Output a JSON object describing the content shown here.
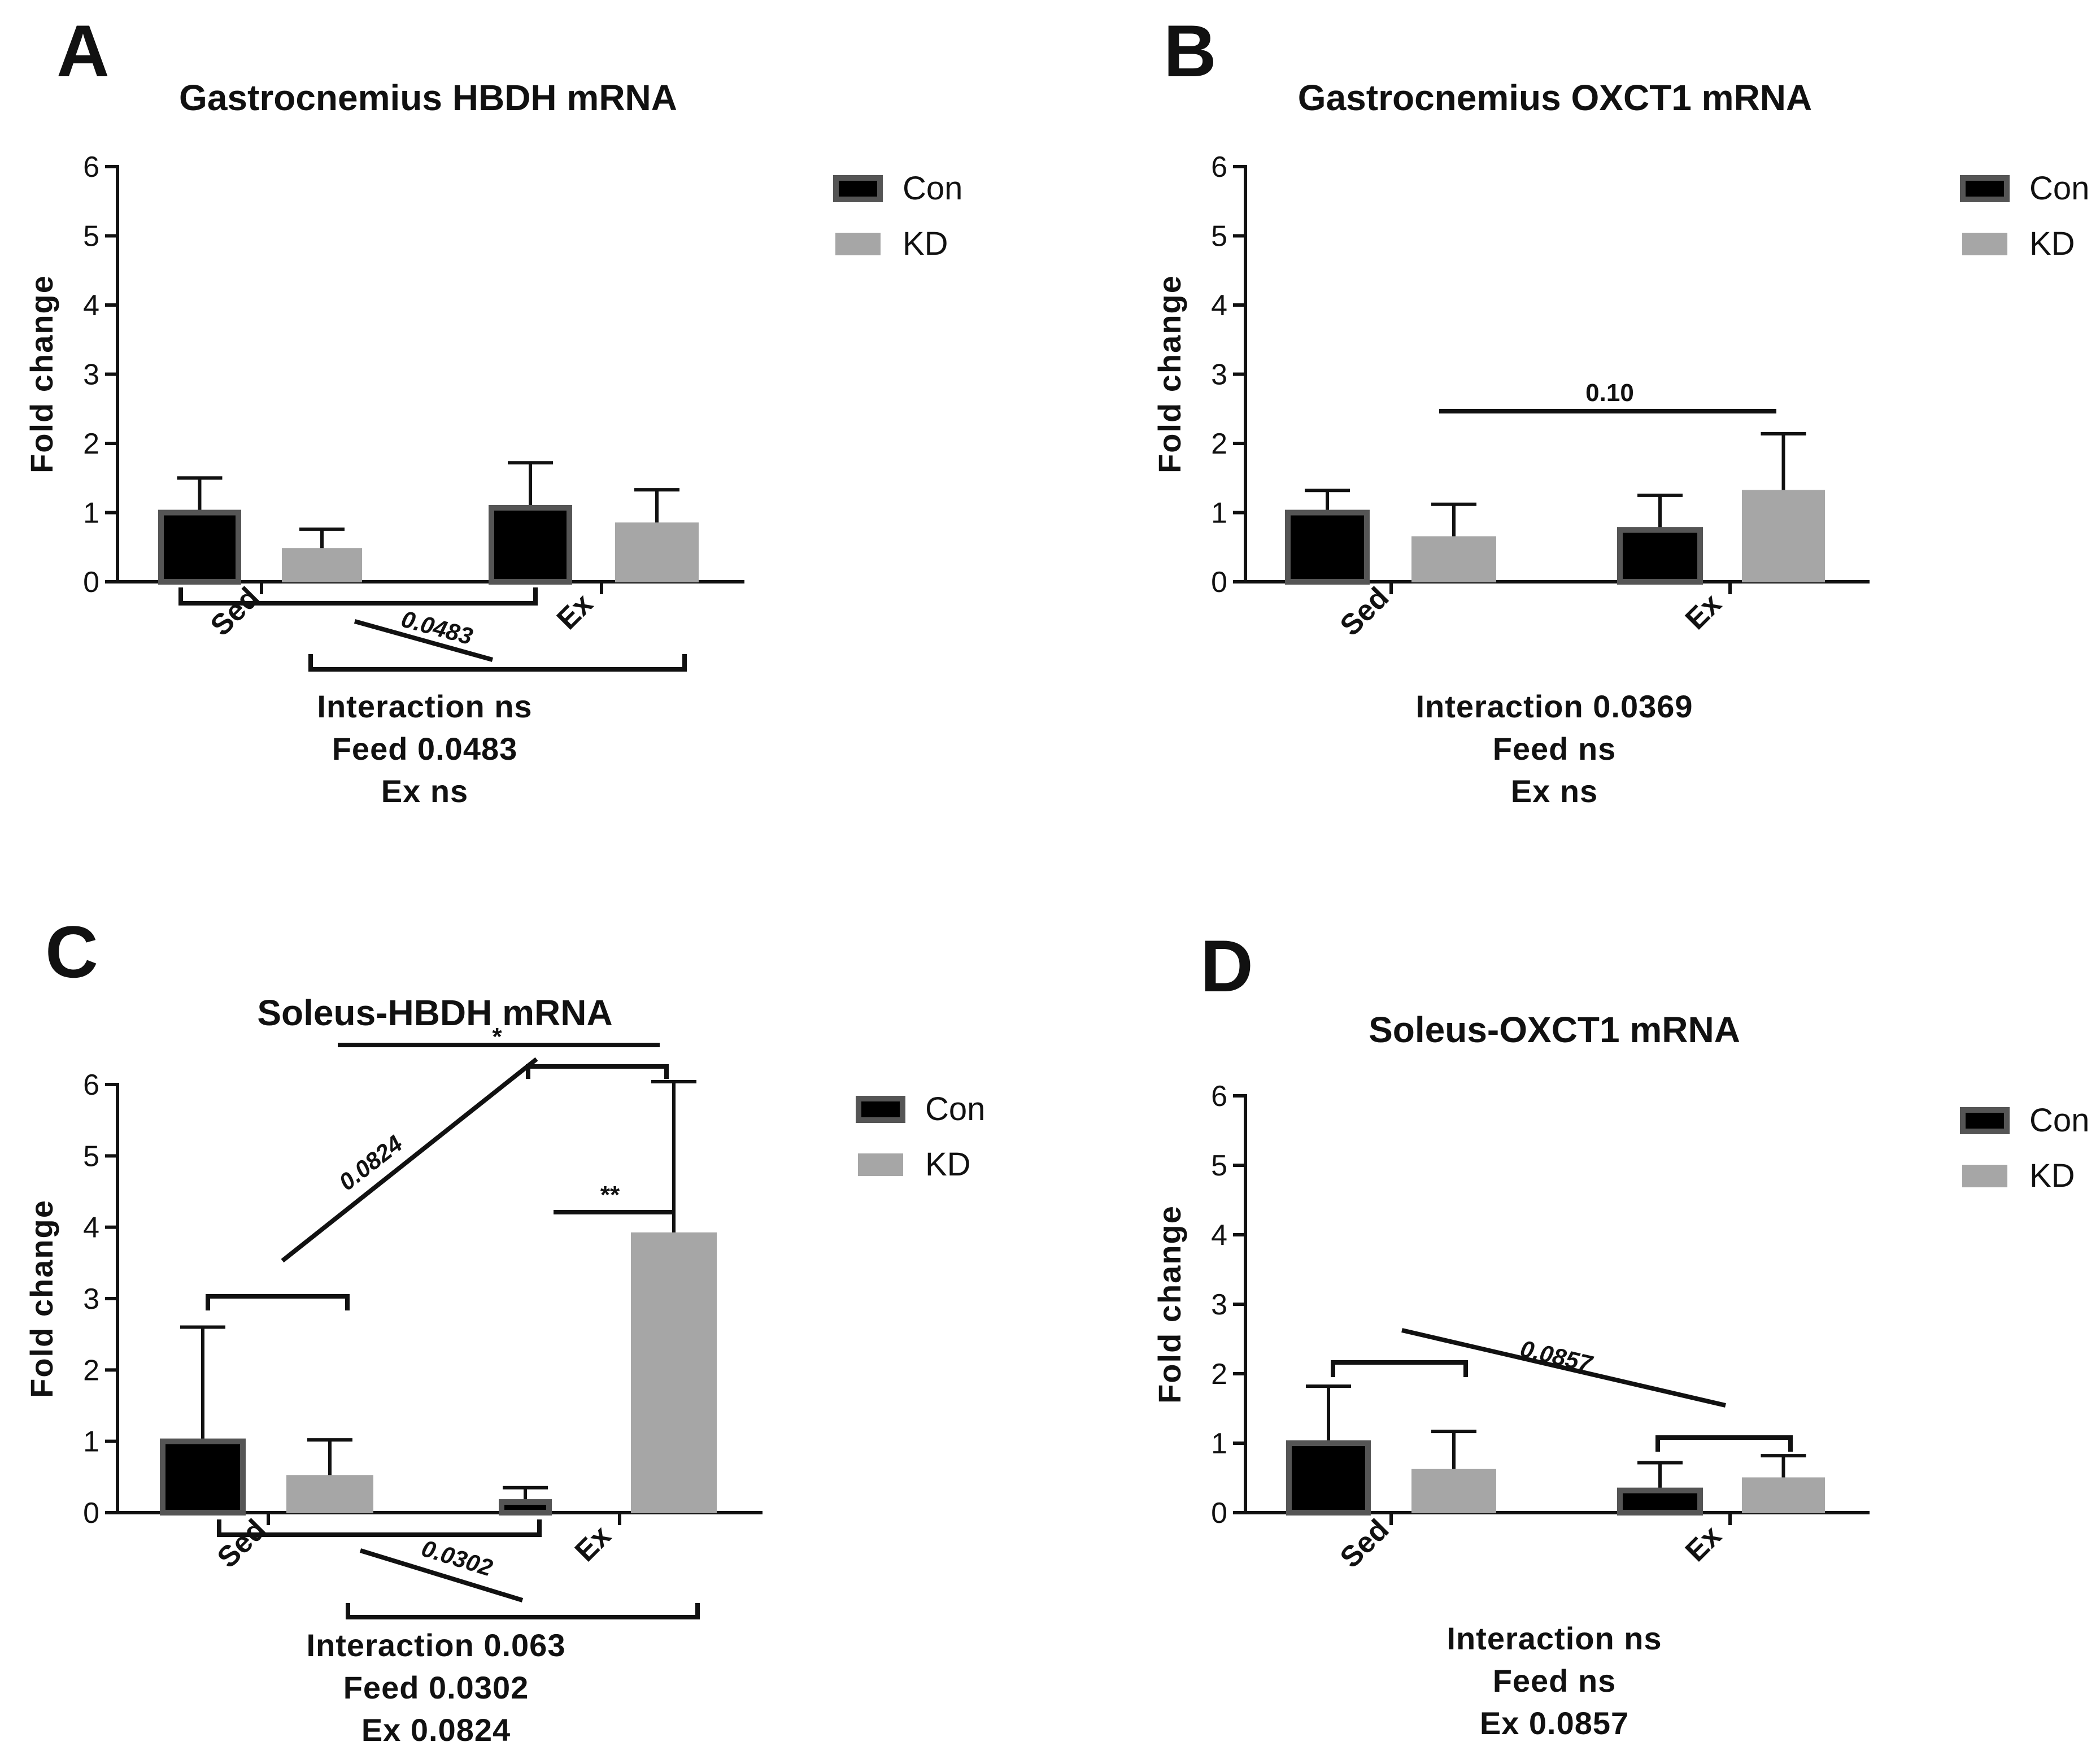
{
  "legend": {
    "entries": [
      {
        "label": "Con",
        "color": "#000000",
        "border": "#555555"
      },
      {
        "label": "KD",
        "color": "#a6a6a6",
        "border": "#a6a6a6"
      }
    ]
  },
  "chart_data": [
    {
      "panel": "A",
      "type": "bar",
      "title": "Gastrocnemius HBDH mRNA",
      "ylabel": "Fold change",
      "xlabel": "",
      "ylim": [
        0,
        6
      ],
      "yticks": [
        "0",
        "1",
        "2",
        "3",
        "4",
        "5",
        "6"
      ],
      "categories": [
        "Sed",
        "Ex"
      ],
      "series": [
        {
          "name": "Con",
          "values": [
            1.0,
            1.07
          ],
          "errors": [
            0.5,
            0.65
          ]
        },
        {
          "name": "KD",
          "values": [
            0.48,
            0.85
          ],
          "errors": [
            0.28,
            0.48
          ]
        }
      ],
      "annotations": [
        {
          "text": "0.0483",
          "style": "italic"
        }
      ],
      "stats": [
        "Interaction ns",
        "Feed 0.0483",
        "Ex ns"
      ]
    },
    {
      "panel": "B",
      "type": "bar",
      "title": "Gastrocnemius OXCT1 mRNA",
      "ylabel": "Fold change",
      "xlabel": "",
      "ylim": [
        0,
        6
      ],
      "yticks": [
        "0",
        "1",
        "2",
        "3",
        "4",
        "5",
        "6"
      ],
      "categories": [
        "Sed",
        "Ex"
      ],
      "series": [
        {
          "name": "Con",
          "values": [
            1.0,
            0.75
          ],
          "errors": [
            0.32,
            0.5
          ]
        },
        {
          "name": "KD",
          "values": [
            0.65,
            1.32
          ],
          "errors": [
            0.47,
            0.82
          ]
        }
      ],
      "annotations": [
        {
          "text": "0.10",
          "style": "normal"
        }
      ],
      "stats": [
        "Interaction 0.0369",
        "Feed ns",
        "Ex ns"
      ]
    },
    {
      "panel": "C",
      "type": "bar",
      "title": "Soleus-HBDH mRNA",
      "ylabel": "Fold change",
      "xlabel": "",
      "ylim": [
        0,
        6
      ],
      "yticks": [
        "0",
        "1",
        "2",
        "3",
        "4",
        "5",
        "6"
      ],
      "categories": [
        "Sed",
        "Ex"
      ],
      "series": [
        {
          "name": "Con",
          "values": [
            1.0,
            0.15
          ],
          "errors": [
            1.6,
            0.2
          ]
        },
        {
          "name": "KD",
          "values": [
            0.52,
            3.92
          ],
          "errors": [
            0.5,
            2.12
          ]
        }
      ],
      "annotations": [
        {
          "text": "0.0824",
          "style": "italic"
        },
        {
          "text": "*",
          "style": "normal"
        },
        {
          "text": "**",
          "style": "normal"
        },
        {
          "text": "0.0302",
          "style": "italic"
        }
      ],
      "stats": [
        "Interaction 0.063",
        "Feed 0.0302",
        "Ex 0.0824"
      ]
    },
    {
      "panel": "D",
      "type": "bar",
      "title": "Soleus-OXCT1 mRNA",
      "ylabel": "Fold change",
      "xlabel": "",
      "ylim": [
        0,
        6
      ],
      "yticks": [
        "0",
        "1",
        "2",
        "3",
        "4",
        "5",
        "6"
      ],
      "categories": [
        "Sed",
        "Ex"
      ],
      "series": [
        {
          "name": "Con",
          "values": [
            1.0,
            0.32
          ],
          "errors": [
            0.82,
            0.4
          ]
        },
        {
          "name": "KD",
          "values": [
            0.62,
            0.5
          ],
          "errors": [
            0.55,
            0.32
          ]
        }
      ],
      "annotations": [
        {
          "text": "0.0857",
          "style": "italic"
        }
      ],
      "stats": [
        "Interaction ns",
        "Feed ns",
        "Ex 0.0857"
      ]
    }
  ]
}
